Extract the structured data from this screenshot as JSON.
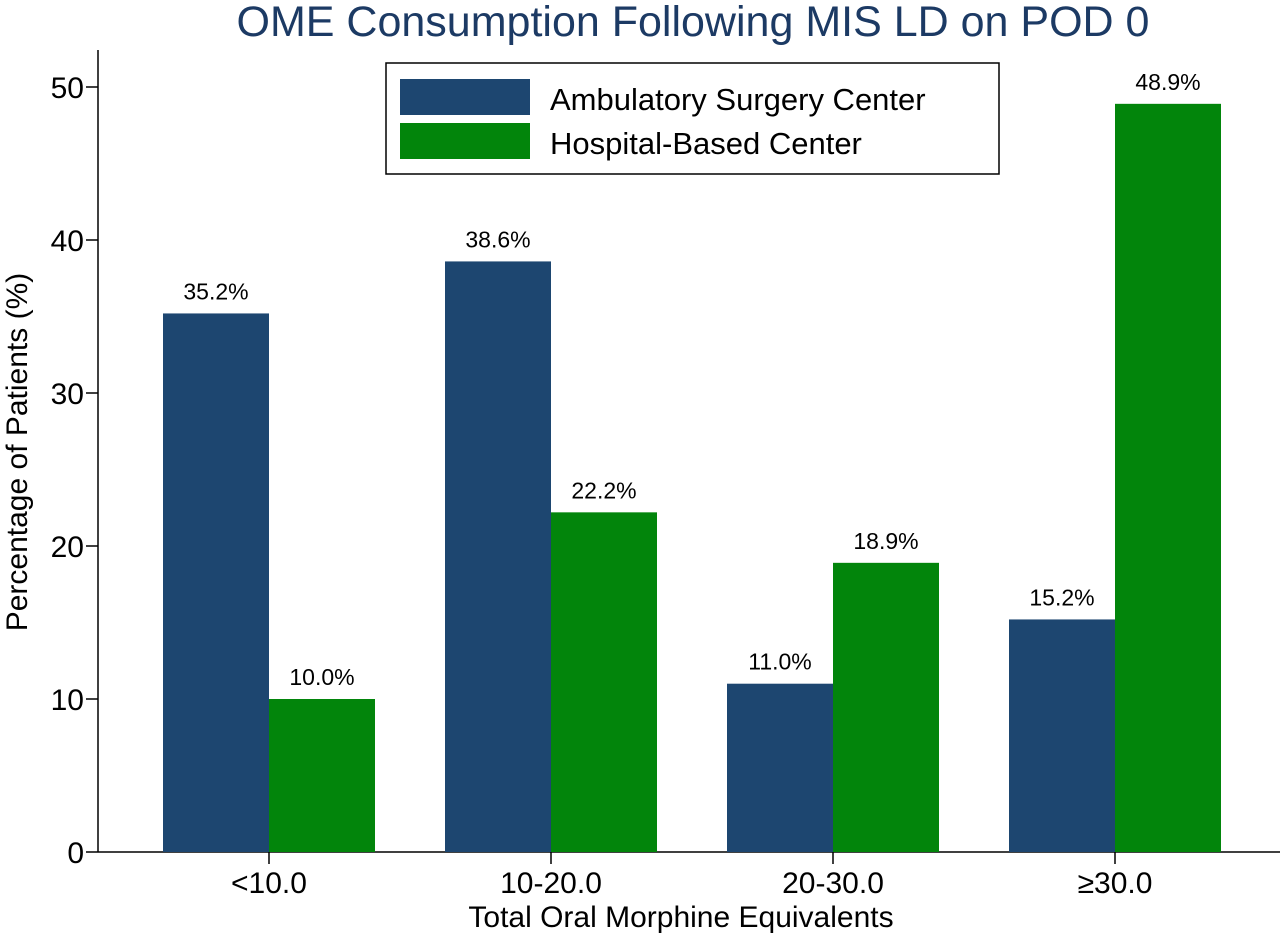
{
  "chart_data": {
    "type": "bar",
    "title": "OME Consumption Following MIS LD on POD 0",
    "xlabel": "Total Oral Morphine Equivalents",
    "ylabel": "Percentage of Patients (%)",
    "categories": [
      "<10.0",
      "10-20.0",
      "20-30.0",
      "≥30.0"
    ],
    "ylim": [
      0,
      50
    ],
    "yticks": [
      0,
      10,
      20,
      30,
      40,
      50
    ],
    "grid": false,
    "legend_position": "top-center",
    "series": [
      {
        "name": "Ambulatory Surgery Center",
        "color": "#1d4670",
        "values": [
          35.2,
          38.6,
          11.0,
          15.2
        ],
        "labels": [
          "35.2%",
          "38.6%",
          "11.0%",
          "15.2%"
        ]
      },
      {
        "name": "Hospital-Based Center",
        "color": "#02850b",
        "values": [
          10.0,
          22.2,
          18.9,
          48.9
        ],
        "labels": [
          "10.0%",
          "22.2%",
          "18.9%",
          "48.9%"
        ]
      }
    ]
  }
}
